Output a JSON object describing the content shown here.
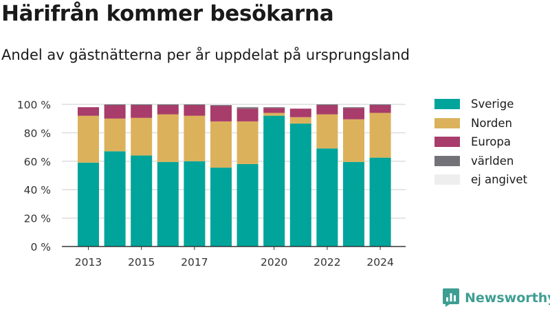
{
  "header": {
    "title": "Härifrån kommer besökarna",
    "subtitle": "Andel av gästnätterna per år uppdelat på ursprungsland"
  },
  "brand": {
    "name": "Newsworthy",
    "icon": "newsworthy-logo-icon",
    "color": "#3e9e93"
  },
  "chart_data": {
    "type": "bar",
    "stacked": true,
    "x": [
      2013,
      2014,
      2015,
      2016,
      2017,
      2018,
      2019,
      2020,
      2021,
      2022,
      2023,
      2024
    ],
    "x_tick_labels": [
      "2013",
      "2015",
      "2017",
      "2020",
      "2022",
      "2024"
    ],
    "y_tick_labels": [
      "0 %",
      "20 %",
      "40 %",
      "60 %",
      "80 %",
      "100 %"
    ],
    "ylim": [
      0,
      100
    ],
    "y_ticks": [
      0,
      20,
      40,
      60,
      80,
      100
    ],
    "grid": true,
    "legend_position": "right",
    "series": [
      {
        "name": "Sverige",
        "color": "#00a49a",
        "values": [
          59,
          67,
          64,
          59.5,
          60,
          55.5,
          58,
          92,
          86.5,
          69,
          59.5,
          62.5
        ]
      },
      {
        "name": "Norden",
        "color": "#dbb25b",
        "values": [
          33,
          23,
          26.5,
          33.5,
          32,
          32.5,
          30,
          2,
          4.5,
          24,
          30,
          31.5
        ]
      },
      {
        "name": "Europa",
        "color": "#a83c6a",
        "values": [
          6,
          9.5,
          9,
          6.5,
          7.5,
          11,
          9,
          3.5,
          6,
          6.5,
          8,
          5.5
        ]
      },
      {
        "name": "världen",
        "color": "#727278",
        "values": [
          0,
          0.5,
          0.5,
          0.5,
          0.5,
          0.5,
          1,
          0.5,
          0,
          0.5,
          0.5,
          0.5
        ]
      },
      {
        "name": "ej angivet",
        "color": "#eeeeee",
        "values": [
          0,
          0,
          0,
          0,
          0,
          0,
          0.5,
          0,
          0,
          0,
          0,
          0
        ]
      }
    ]
  }
}
